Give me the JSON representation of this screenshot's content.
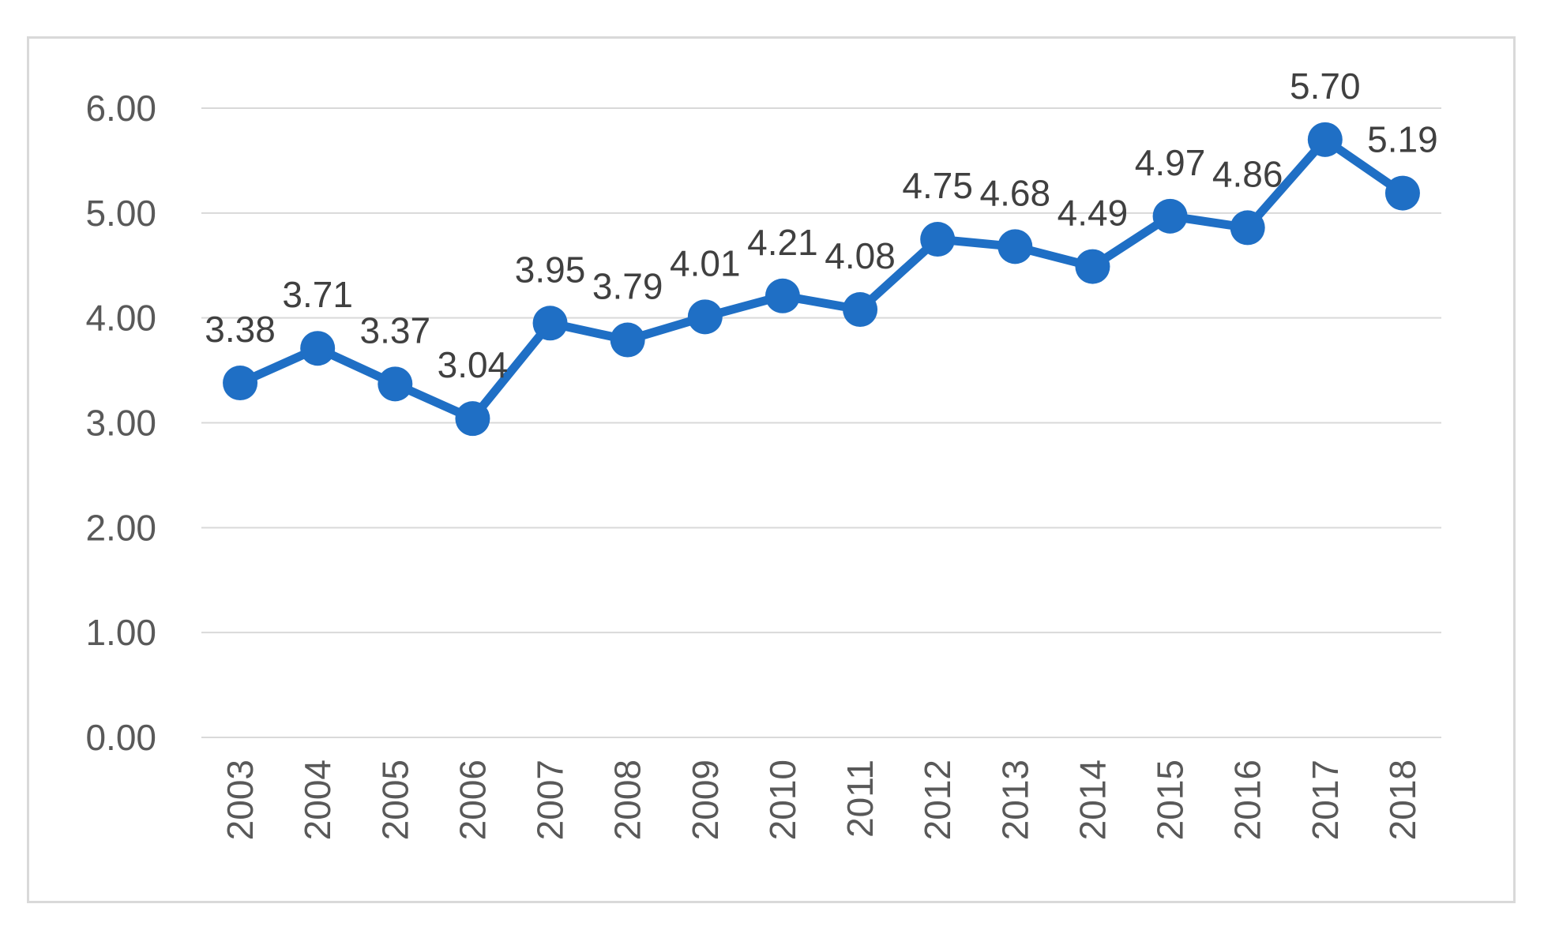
{
  "chart_data": {
    "type": "line",
    "title": "",
    "xlabel": "",
    "ylabel": "",
    "categories": [
      "2003",
      "2004",
      "2005",
      "2006",
      "2007",
      "2008",
      "2009",
      "2010",
      "2011",
      "2012",
      "2013",
      "2014",
      "2015",
      "2016",
      "2017",
      "2018"
    ],
    "series": [
      {
        "values": [
          3.38,
          3.71,
          3.37,
          3.04,
          3.95,
          3.79,
          4.01,
          4.21,
          4.08,
          4.75,
          4.68,
          4.49,
          4.97,
          4.86,
          5.7,
          5.19
        ],
        "labels": [
          "3.38",
          "3.71",
          "3.37",
          "3.04",
          "3.95",
          "3.79",
          "4.01",
          "4.21",
          "4.08",
          "4.75",
          "4.68",
          "4.49",
          "4.97",
          "4.86",
          "5.70",
          "5.19"
        ],
        "color": "#1f6fc5"
      }
    ],
    "ylim": [
      0,
      6
    ],
    "yticks": [
      "0.00",
      "1.00",
      "2.00",
      "3.00",
      "4.00",
      "5.00",
      "6.00"
    ],
    "grid": true,
    "legend": "none",
    "gridline_color": "#d9d9d9",
    "axis_text_color": "#595959"
  }
}
